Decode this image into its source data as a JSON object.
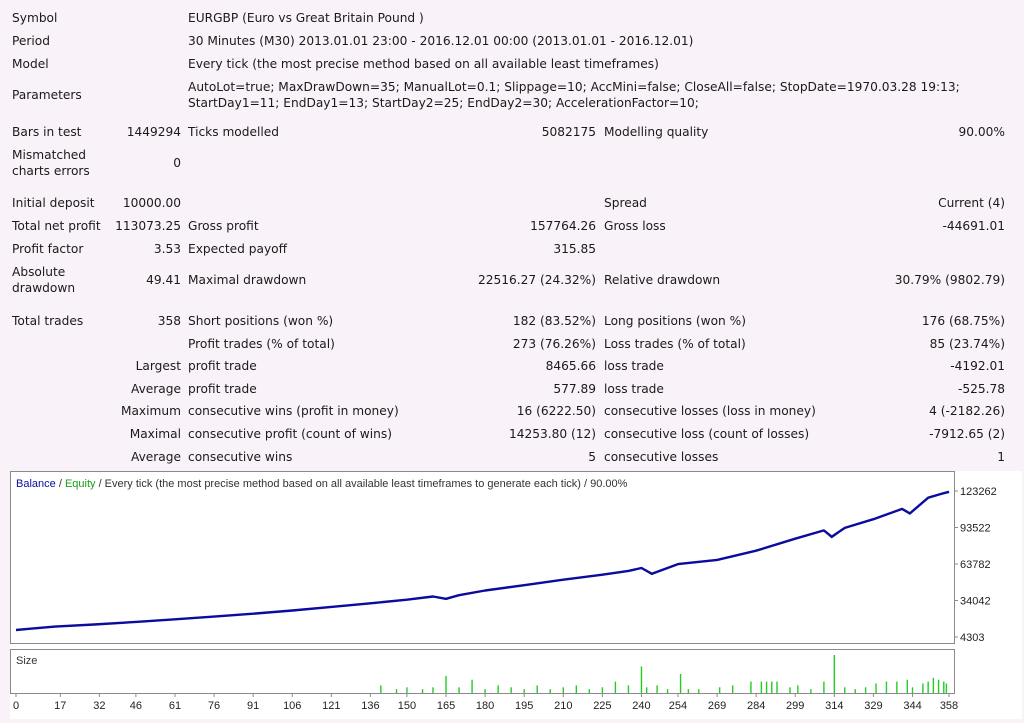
{
  "report": {
    "symbol_label": "Symbol",
    "symbol_value": "EURGBP (Euro vs Great Britain Pound )",
    "period_label": "Period",
    "period_value": "30 Minutes (M30) 2013.01.01 23:00 - 2016.12.01 00:00 (2013.01.01 - 2016.12.01)",
    "model_label": "Model",
    "model_value": "Every tick (the most precise method based on all available least timeframes)",
    "parameters_label": "Parameters",
    "parameters_line1": "AutoLot=true; MaxDrawDown=35; ManualLot=0.1; Slippage=10; AccMini=false; CloseAll=false; StopDate=1970.03.28 19:13;",
    "parameters_line2": "StartDay1=11; EndDay1=13; StartDay2=25; EndDay2=30; AccelerationFactor=10;",
    "bars_label": "Bars in test",
    "bars_value": "1449294",
    "ticks_label": "Ticks modelled",
    "ticks_value": "5082175",
    "quality_label": "Modelling quality",
    "quality_value": "90.00%",
    "mismatch_label1": "Mismatched",
    "mismatch_label2": "charts errors",
    "mismatch_value": "0",
    "deposit_label": "Initial deposit",
    "deposit_value": "10000.00",
    "spread_label": "Spread",
    "spread_value": "Current (4)",
    "net_profit_label": "Total net profit",
    "net_profit_value": "113073.25",
    "gross_profit_label": "Gross profit",
    "gross_profit_value": "157764.26",
    "gross_loss_label": "Gross loss",
    "gross_loss_value": "-44691.01",
    "profit_factor_label": "Profit factor",
    "profit_factor_value": "3.53",
    "expected_payoff_label": "Expected payoff",
    "expected_payoff_value": "315.85",
    "abs_dd_label1": "Absolute",
    "abs_dd_label2": "drawdown",
    "abs_dd_value": "49.41",
    "max_dd_label": "Maximal drawdown",
    "max_dd_value": "22516.27 (24.32%)",
    "rel_dd_label": "Relative drawdown",
    "rel_dd_value": "30.79% (9802.79)",
    "total_trades_label": "Total trades",
    "total_trades_value": "358",
    "short_label": "Short positions (won %)",
    "short_value": "182 (83.52%)",
    "long_label": "Long positions (won %)",
    "long_value": "176 (68.75%)",
    "profit_trades_label": "Profit trades (% of total)",
    "profit_trades_value": "273 (76.26%)",
    "loss_trades_label": "Loss trades (% of total)",
    "loss_trades_value": "85 (23.74%)",
    "largest_label": "Largest",
    "largest_profit_label": "profit trade",
    "largest_profit_value": "8465.66",
    "largest_loss_label": "loss trade",
    "largest_loss_value": "-4192.01",
    "average_label": "Average",
    "average_profit_label": "profit trade",
    "average_profit_value": "577.89",
    "average_loss_label": "loss trade",
    "average_loss_value": "-525.78",
    "maximum_label": "Maximum",
    "max_cons_wins_label": "consecutive wins (profit in money)",
    "max_cons_wins_value": "16 (6222.50)",
    "max_cons_losses_label": "consecutive losses (loss in money)",
    "max_cons_losses_value": "4 (-2182.26)",
    "maximal_label": "Maximal",
    "maximal_profit_label": "consecutive profit (count of wins)",
    "maximal_profit_value": "14253.80 (12)",
    "maximal_loss_label": "consecutive loss (count of losses)",
    "maximal_loss_value": "-7912.65 (2)",
    "average2_label": "Average",
    "avg_cons_wins_label": "consecutive wins",
    "avg_cons_wins_value": "5",
    "avg_cons_losses_label": "consecutive losses",
    "avg_cons_losses_value": "1"
  },
  "chart_header": {
    "balance": "Balance",
    "sep1": " / ",
    "equity": "Equity",
    "rest": " / Every tick (the most precise method based on all available least timeframes to generate each tick) / 90.00%",
    "size_label": "Size"
  },
  "colors": {
    "balance": "#0b0b9e",
    "equity": "#19a019",
    "size_bars": "#22cc22",
    "background": "#f9f3f9",
    "chart_bg": "#ffffff"
  },
  "chart_data": {
    "type": "line",
    "y_ticks": [
      "123262",
      "93522",
      "63782",
      "34042",
      "4303"
    ],
    "x_ticks": [
      "0",
      "17",
      "32",
      "46",
      "61",
      "76",
      "91",
      "106",
      "121",
      "136",
      "150",
      "165",
      "180",
      "195",
      "210",
      "225",
      "240",
      "254",
      "269",
      "284",
      "299",
      "314",
      "329",
      "344",
      "358"
    ],
    "ylim": [
      4303,
      123262
    ],
    "xlim": [
      0,
      358
    ],
    "series": [
      {
        "name": "Balance",
        "x": [
          0,
          5,
          15,
          30,
          46,
          61,
          76,
          91,
          106,
          121,
          136,
          150,
          160,
          165,
          170,
          180,
          195,
          210,
          225,
          235,
          240,
          244,
          254,
          269,
          284,
          299,
          310,
          313,
          318,
          329,
          340,
          343,
          350,
          355,
          358
        ],
        "values": [
          10000,
          11000,
          12800,
          14500,
          16600,
          18700,
          20900,
          23300,
          25900,
          28800,
          31800,
          34700,
          37300,
          35400,
          38400,
          42200,
          46500,
          51000,
          55100,
          58200,
          60500,
          55800,
          63700,
          67100,
          74600,
          84400,
          91200,
          86000,
          93200,
          100300,
          108700,
          105000,
          117800,
          120900,
          122600
        ]
      },
      {
        "name": "Equity",
        "x": [
          0,
          5,
          15,
          30,
          46,
          61,
          76,
          91,
          106,
          121,
          136,
          150,
          160,
          165,
          170,
          180,
          195,
          210,
          225,
          235,
          240,
          244,
          254,
          269,
          284,
          299,
          310,
          313,
          318,
          329,
          340,
          343,
          350,
          355,
          358
        ],
        "values": [
          10000,
          11000,
          12800,
          14500,
          16600,
          18700,
          20900,
          23300,
          25900,
          28800,
          31800,
          34700,
          37300,
          34900,
          38400,
          42200,
          46500,
          51000,
          55100,
          58200,
          60500,
          55300,
          63700,
          67100,
          74600,
          84400,
          91200,
          85200,
          93200,
          100300,
          108700,
          104500,
          117800,
          120900,
          122600
        ]
      }
    ],
    "size_bars": [
      [
        140,
        4
      ],
      [
        146,
        2
      ],
      [
        150,
        3
      ],
      [
        156,
        2
      ],
      [
        160,
        3
      ],
      [
        165,
        9
      ],
      [
        170,
        3
      ],
      [
        175,
        7
      ],
      [
        180,
        2
      ],
      [
        185,
        4
      ],
      [
        190,
        3
      ],
      [
        195,
        2
      ],
      [
        200,
        4
      ],
      [
        205,
        2
      ],
      [
        210,
        3
      ],
      [
        215,
        4
      ],
      [
        220,
        2
      ],
      [
        225,
        3
      ],
      [
        230,
        6
      ],
      [
        235,
        4
      ],
      [
        240,
        14
      ],
      [
        242,
        3
      ],
      [
        246,
        4
      ],
      [
        250,
        2
      ],
      [
        255,
        10
      ],
      [
        258,
        2
      ],
      [
        262,
        2
      ],
      [
        270,
        3
      ],
      [
        275,
        4
      ],
      [
        282,
        6
      ],
      [
        286,
        6
      ],
      [
        288,
        6
      ],
      [
        290,
        6
      ],
      [
        292,
        6
      ],
      [
        297,
        3
      ],
      [
        300,
        4
      ],
      [
        305,
        2
      ],
      [
        310,
        6
      ],
      [
        314,
        20
      ],
      [
        318,
        3
      ],
      [
        322,
        2
      ],
      [
        326,
        3
      ],
      [
        330,
        5
      ],
      [
        334,
        6
      ],
      [
        338,
        6
      ],
      [
        342,
        7
      ],
      [
        344,
        3
      ],
      [
        348,
        5
      ],
      [
        350,
        6
      ],
      [
        352,
        8
      ],
      [
        354,
        7
      ],
      [
        356,
        6
      ],
      [
        357,
        5
      ]
    ]
  }
}
